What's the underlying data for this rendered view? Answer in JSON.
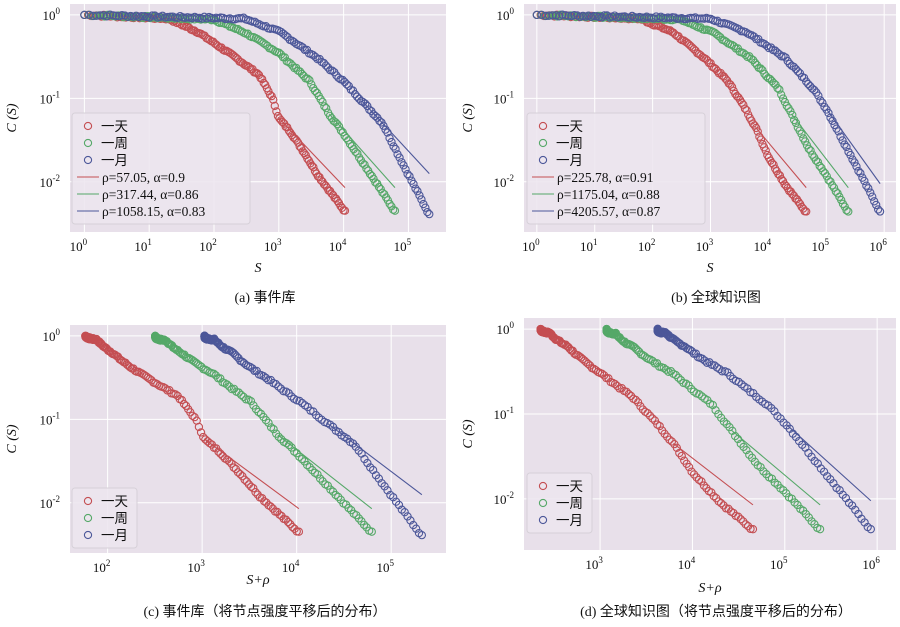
{
  "colors": {
    "red": "#c44e52",
    "green": "#55a868",
    "blue": "#4c5799",
    "plot_bg": "#e8e0ea",
    "grid": "#ffffff"
  },
  "chart_data": [
    {
      "id": "a",
      "type": "scatter",
      "caption": "(a) 事件库",
      "xlabel": "S",
      "ylabel": "C (S)",
      "xscale": "log",
      "yscale": "log",
      "xlim": [
        0.6,
        380000
      ],
      "ylim": [
        0.0025,
        1.35
      ],
      "xticks": [
        {
          "e": 0,
          "v": 1
        },
        {
          "e": 1,
          "v": 10
        },
        {
          "e": 2,
          "v": 100
        },
        {
          "e": 3,
          "v": 1000
        },
        {
          "e": 4,
          "v": 10000
        },
        {
          "e": 5,
          "v": 100000
        }
      ],
      "yticks": [
        {
          "e": 0,
          "v": 1
        },
        {
          "e": -1,
          "v": 0.1
        },
        {
          "e": -2,
          "v": 0.01
        }
      ],
      "grid": true,
      "legend_position": "lower-left",
      "series": [
        {
          "name": "一天",
          "color": "red",
          "rho": 57.05,
          "alpha": 0.9,
          "xmax": 10500,
          "shift": 0,
          "curve": [
            [
              1,
              1
            ],
            [
              20,
              0.9
            ],
            [
              57,
              0.62
            ],
            [
              200,
              0.32
            ],
            [
              500,
              0.19
            ],
            [
              800,
              0.1
            ],
            [
              1000,
              0.058
            ],
            [
              1500,
              0.04
            ],
            [
              2500,
              0.022
            ],
            [
              4000,
              0.012
            ],
            [
              10500,
              0.0044
            ]
          ],
          "fit": {
            "label": "ρ=57.05, α=0.9",
            "x0": 1000,
            "y0": 0.058,
            "x1": 10500,
            "y1": 0.0085
          }
        },
        {
          "name": "一周",
          "color": "green",
          "rho": 317.44,
          "alpha": 0.86,
          "xmax": 62000,
          "shift": 0,
          "curve": [
            [
              1,
              1
            ],
            [
              100,
              0.88
            ],
            [
              317,
              0.6
            ],
            [
              1000,
              0.35
            ],
            [
              3000,
              0.16
            ],
            [
              6000,
              0.065
            ],
            [
              10000,
              0.038
            ],
            [
              25000,
              0.013
            ],
            [
              62000,
              0.0044
            ]
          ],
          "fit": {
            "label": "ρ=317.44, α=0.86",
            "x0": 6000,
            "y0": 0.065,
            "x1": 62000,
            "y1": 0.0085
          }
        },
        {
          "name": "一月",
          "color": "blue",
          "rho": 1058.15,
          "alpha": 0.83,
          "xmax": 210000,
          "shift": 0,
          "curve": [
            [
              1,
              1
            ],
            [
              300,
              0.9
            ],
            [
              1058,
              0.62
            ],
            [
              4000,
              0.3
            ],
            [
              10000,
              0.16
            ],
            [
              20000,
              0.09
            ],
            [
              40000,
              0.05
            ],
            [
              80000,
              0.017
            ],
            [
              210000,
              0.004
            ]
          ],
          "fit": {
            "label": "ρ=1058.15, α=0.83",
            "x0": 20000,
            "y0": 0.09,
            "x1": 210000,
            "y1": 0.0125
          }
        }
      ],
      "legend_fit_labels": [
        "ρ=57.05, α=0.9",
        "ρ=317.44, α=0.86",
        "ρ=1058.15, α=0.83"
      ]
    },
    {
      "id": "b",
      "type": "scatter",
      "caption": "(b) 全球知识图",
      "xlabel": "S",
      "ylabel": "C (S)",
      "xscale": "log",
      "yscale": "log",
      "xlim": [
        0.6,
        1600000
      ],
      "ylim": [
        0.0025,
        1.35
      ],
      "xticks": [
        {
          "e": 0,
          "v": 1
        },
        {
          "e": 1,
          "v": 10
        },
        {
          "e": 2,
          "v": 100
        },
        {
          "e": 3,
          "v": 1000
        },
        {
          "e": 4,
          "v": 10000
        },
        {
          "e": 5,
          "v": 100000
        },
        {
          "e": 6,
          "v": 1000000
        }
      ],
      "yticks": [
        {
          "e": 0,
          "v": 1
        },
        {
          "e": -1,
          "v": 0.1
        },
        {
          "e": -2,
          "v": 0.01
        }
      ],
      "grid": true,
      "legend_position": "lower-left",
      "series": [
        {
          "name": "一天",
          "color": "red",
          "rho": 225.78,
          "alpha": 0.91,
          "xmax": 45000,
          "shift": 0,
          "curve": [
            [
              1,
              1
            ],
            [
              60,
              0.9
            ],
            [
              225,
              0.62
            ],
            [
              800,
              0.3
            ],
            [
              2000,
              0.16
            ],
            [
              4000,
              0.075
            ],
            [
              6000,
              0.045
            ],
            [
              10000,
              0.02
            ],
            [
              20000,
              0.009
            ],
            [
              45000,
              0.0043
            ]
          ],
          "fit": {
            "label": "ρ=225.78, α=0.91",
            "x0": 6000,
            "y0": 0.045,
            "x1": 45000,
            "y1": 0.0085
          }
        },
        {
          "name": "一周",
          "color": "green",
          "rho": 1175.04,
          "alpha": 0.88,
          "xmax": 240000,
          "shift": 0,
          "curve": [
            [
              1,
              1
            ],
            [
              300,
              0.88
            ],
            [
              1175,
              0.6
            ],
            [
              5000,
              0.3
            ],
            [
              15000,
              0.13
            ],
            [
              25000,
              0.065
            ],
            [
              50000,
              0.025
            ],
            [
              100000,
              0.012
            ],
            [
              240000,
              0.0043
            ]
          ],
          "fit": {
            "label": "ρ=1175.04, α=0.88",
            "x0": 25000,
            "y0": 0.065,
            "x1": 240000,
            "y1": 0.0085
          }
        },
        {
          "name": "一月",
          "color": "blue",
          "rho": 4205.57,
          "alpha": 0.87,
          "xmax": 850000,
          "shift": 0,
          "curve": [
            [
              1,
              1
            ],
            [
              1000,
              0.9
            ],
            [
              4205,
              0.62
            ],
            [
              20000,
              0.3
            ],
            [
              60000,
              0.13
            ],
            [
              100000,
              0.075
            ],
            [
              200000,
              0.03
            ],
            [
              400000,
              0.012
            ],
            [
              850000,
              0.0043
            ]
          ],
          "fit": {
            "label": "ρ=4205.57, α=0.87",
            "x0": 100000,
            "y0": 0.075,
            "x1": 850000,
            "y1": 0.0095
          }
        }
      ],
      "legend_fit_labels": [
        "ρ=225.78, α=0.91",
        "ρ=1175.04, α=0.88",
        "ρ=4205.57, α=0.87"
      ]
    },
    {
      "id": "c",
      "type": "scatter",
      "caption": "(c) 事件库（将节点强度平移后的分布）",
      "xlabel": "S+ρ",
      "ylabel": "C (S)",
      "xscale": "log",
      "yscale": "log",
      "xlim": [
        40,
        380000
      ],
      "ylim": [
        0.0025,
        1.35
      ],
      "xticks": [
        {
          "e": 2,
          "v": 100
        },
        {
          "e": 3,
          "v": 1000
        },
        {
          "e": 4,
          "v": 10000
        },
        {
          "e": 5,
          "v": 100000
        }
      ],
      "yticks": [
        {
          "e": 0,
          "v": 1
        },
        {
          "e": -1,
          "v": 0.1
        },
        {
          "e": -2,
          "v": 0.01
        }
      ],
      "grid": true,
      "legend_position": "lower-left",
      "series": [
        {
          "name": "一天",
          "color": "red",
          "rho": 57.05,
          "alpha": 0.9,
          "shift": 1,
          "curve": [
            [
              1,
              1
            ],
            [
              20,
              0.9
            ],
            [
              57,
              0.62
            ],
            [
              200,
              0.32
            ],
            [
              500,
              0.19
            ],
            [
              800,
              0.1
            ],
            [
              1000,
              0.058
            ],
            [
              1500,
              0.04
            ],
            [
              2500,
              0.022
            ],
            [
              4000,
              0.012
            ],
            [
              10500,
              0.0044
            ]
          ],
          "fit": {
            "x0": 1057,
            "y0": 0.058,
            "x1": 10557,
            "y1": 0.0085
          }
        },
        {
          "name": "一周",
          "color": "green",
          "rho": 317.44,
          "alpha": 0.86,
          "shift": 1,
          "curve": [
            [
              1,
              1
            ],
            [
              100,
              0.88
            ],
            [
              317,
              0.6
            ],
            [
              1000,
              0.35
            ],
            [
              3000,
              0.16
            ],
            [
              6000,
              0.065
            ],
            [
              10000,
              0.038
            ],
            [
              25000,
              0.013
            ],
            [
              62000,
              0.0044
            ]
          ],
          "fit": {
            "x0": 6317,
            "y0": 0.065,
            "x1": 62317,
            "y1": 0.0085
          }
        },
        {
          "name": "一月",
          "color": "blue",
          "rho": 1058.15,
          "alpha": 0.83,
          "shift": 1,
          "curve": [
            [
              1,
              1
            ],
            [
              300,
              0.9
            ],
            [
              1058,
              0.62
            ],
            [
              4000,
              0.3
            ],
            [
              10000,
              0.16
            ],
            [
              20000,
              0.09
            ],
            [
              40000,
              0.05
            ],
            [
              80000,
              0.017
            ],
            [
              210000,
              0.004
            ]
          ],
          "fit": {
            "x0": 21058,
            "y0": 0.09,
            "x1": 211058,
            "y1": 0.0125
          }
        }
      ]
    },
    {
      "id": "d",
      "type": "scatter",
      "caption": "(d) 全球知识图（将节点强度平移后的分布）",
      "xlabel": "S+ρ",
      "ylabel": "C (S)",
      "xscale": "log",
      "yscale": "log",
      "xlim": [
        150,
        1600000
      ],
      "ylim": [
        0.0025,
        1.35
      ],
      "xticks": [
        {
          "e": 3,
          "v": 1000
        },
        {
          "e": 4,
          "v": 10000
        },
        {
          "e": 5,
          "v": 100000
        },
        {
          "e": 6,
          "v": 1000000
        }
      ],
      "yticks": [
        {
          "e": 0,
          "v": 1
        },
        {
          "e": -1,
          "v": 0.1
        },
        {
          "e": -2,
          "v": 0.01
        }
      ],
      "grid": true,
      "legend_position": "lower-left",
      "series": [
        {
          "name": "一天",
          "color": "red",
          "rho": 225.78,
          "alpha": 0.91,
          "shift": 1,
          "curve": [
            [
              1,
              1
            ],
            [
              60,
              0.9
            ],
            [
              225,
              0.62
            ],
            [
              800,
              0.3
            ],
            [
              2000,
              0.16
            ],
            [
              4000,
              0.075
            ],
            [
              6000,
              0.045
            ],
            [
              10000,
              0.02
            ],
            [
              20000,
              0.009
            ],
            [
              45000,
              0.0043
            ]
          ],
          "fit": {
            "x0": 6226,
            "y0": 0.045,
            "x1": 45226,
            "y1": 0.0085
          }
        },
        {
          "name": "一周",
          "color": "green",
          "rho": 1175.04,
          "alpha": 0.88,
          "shift": 1,
          "curve": [
            [
              1,
              1
            ],
            [
              300,
              0.88
            ],
            [
              1175,
              0.6
            ],
            [
              5000,
              0.3
            ],
            [
              15000,
              0.13
            ],
            [
              25000,
              0.065
            ],
            [
              50000,
              0.025
            ],
            [
              100000,
              0.012
            ],
            [
              240000,
              0.0043
            ]
          ],
          "fit": {
            "x0": 26175,
            "y0": 0.065,
            "x1": 241175,
            "y1": 0.0085
          }
        },
        {
          "name": "一月",
          "color": "blue",
          "rho": 4205.57,
          "alpha": 0.87,
          "shift": 1,
          "curve": [
            [
              1,
              1
            ],
            [
              1000,
              0.9
            ],
            [
              4205,
              0.62
            ],
            [
              20000,
              0.3
            ],
            [
              60000,
              0.13
            ],
            [
              100000,
              0.075
            ],
            [
              200000,
              0.03
            ],
            [
              400000,
              0.012
            ],
            [
              850000,
              0.0043
            ]
          ],
          "fit": {
            "x0": 104206,
            "y0": 0.075,
            "x1": 854206,
            "y1": 0.0095
          }
        }
      ]
    }
  ]
}
